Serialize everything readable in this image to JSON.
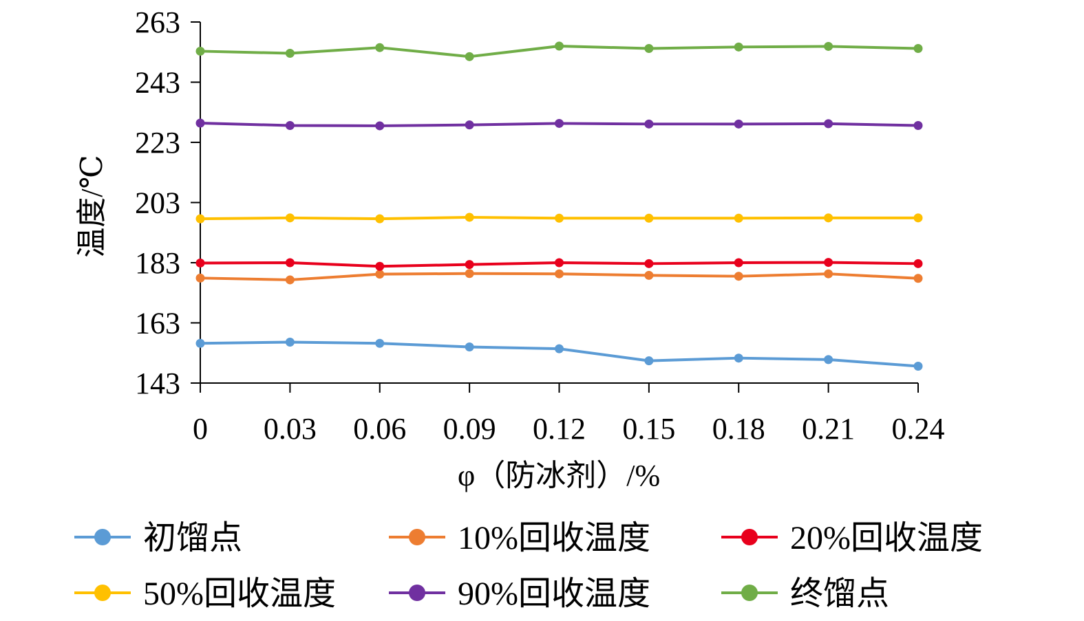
{
  "chart_data": {
    "type": "line",
    "xlabel": "φ（防冰剂）/%",
    "ylabel": "温度/℃",
    "x": [
      "0",
      "0.03",
      "0.06",
      "0.09",
      "0.12",
      "0.15",
      "0.18",
      "0.21",
      "0.24"
    ],
    "y_ticks": [
      "143",
      "163",
      "183",
      "203",
      "223",
      "243",
      "263"
    ],
    "ylim": [
      143,
      263
    ],
    "grid": false,
    "legend_position": "bottom",
    "series": [
      {
        "name": "初馏点",
        "color": "#5B9BD5",
        "values": [
          156.2,
          156.6,
          156.2,
          155.0,
          154.4,
          150.4,
          151.3,
          150.8,
          148.6
        ]
      },
      {
        "name": "10%回收温度",
        "color": "#ED7D31",
        "values": [
          177.9,
          177.3,
          179.2,
          179.4,
          179.3,
          178.8,
          178.5,
          179.3,
          177.8
        ]
      },
      {
        "name": "20%回收温度",
        "color": "#E8001C",
        "values": [
          182.9,
          183.0,
          181.8,
          182.4,
          183.0,
          182.7,
          183.0,
          183.1,
          182.7
        ]
      },
      {
        "name": "50%回收温度",
        "color": "#FFC000",
        "values": [
          197.6,
          197.9,
          197.6,
          198.1,
          197.8,
          197.8,
          197.8,
          197.9,
          197.9
        ]
      },
      {
        "name": "90%回收温度",
        "color": "#7030A0",
        "values": [
          229.4,
          228.6,
          228.5,
          228.8,
          229.3,
          229.1,
          229.1,
          229.2,
          228.6
        ]
      },
      {
        "name": "终馏点",
        "color": "#70AD47",
        "values": [
          253.3,
          252.6,
          254.5,
          251.5,
          255.0,
          254.2,
          254.7,
          254.9,
          254.2
        ]
      }
    ]
  }
}
